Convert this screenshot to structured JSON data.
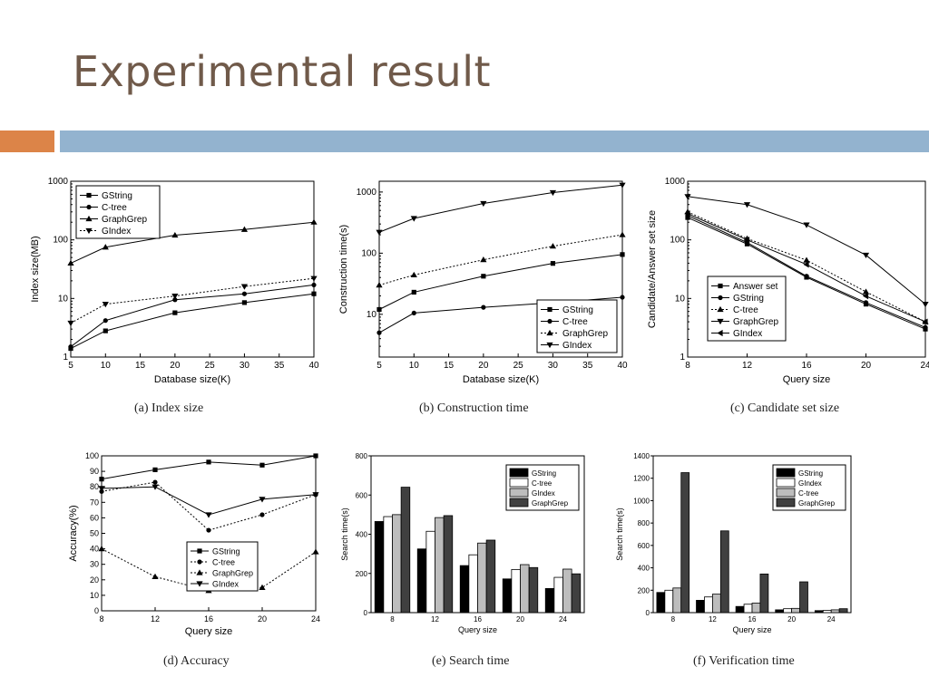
{
  "title": "Experimental result",
  "colors": {
    "title": "#705a4a",
    "accent_bar": "#dc8448",
    "main_bar": "#93b3cf"
  },
  "captions": {
    "a": "(a)  Index size",
    "b": "(b)  Construction time",
    "c": "(c)  Candidate set size",
    "d": "(d)  Accuracy",
    "e": "(e)  Search time",
    "f": "(f)  Verification time"
  },
  "chart_data": [
    {
      "id": "a",
      "type": "line",
      "yscale": "log",
      "xlabel": "Database size(K)",
      "ylabel": "Index size(MB)",
      "xlim": [
        5,
        40
      ],
      "ylim": [
        1,
        1000
      ],
      "xticks": [
        5,
        10,
        15,
        20,
        25,
        30,
        35,
        40
      ],
      "yticks": [
        1,
        10,
        100,
        1000
      ],
      "legend_position": "top-left",
      "series": [
        {
          "name": "GString",
          "marker": "square",
          "dash": "solid",
          "x": [
            5,
            10,
            20,
            30,
            40
          ],
          "y": [
            1.4,
            2.8,
            5.7,
            8.5,
            12
          ]
        },
        {
          "name": "C-tree",
          "marker": "circle",
          "dash": "solid",
          "x": [
            5,
            10,
            20,
            30,
            40
          ],
          "y": [
            1.5,
            4.2,
            9.5,
            12,
            17
          ]
        },
        {
          "name": "GraphGrep",
          "marker": "triangle-up",
          "dash": "solid",
          "x": [
            5,
            10,
            20,
            30,
            40
          ],
          "y": [
            40,
            75,
            120,
            150,
            200
          ]
        },
        {
          "name": "GIndex",
          "marker": "triangle-down",
          "dash": "dotted",
          "x": [
            5,
            10,
            20,
            30,
            40
          ],
          "y": [
            3.8,
            8,
            11,
            16,
            22
          ]
        }
      ]
    },
    {
      "id": "b",
      "type": "line",
      "yscale": "log",
      "xlabel": "Database size(K)",
      "ylabel": "Construction time(s)",
      "xlim": [
        5,
        40
      ],
      "ylim": [
        2,
        1500
      ],
      "xticks": [
        5,
        10,
        15,
        20,
        25,
        30,
        35,
        40
      ],
      "yticks": [
        10,
        100,
        1000
      ],
      "legend_position": "bottom-right",
      "series": [
        {
          "name": "GString",
          "marker": "square",
          "dash": "solid",
          "x": [
            5,
            10,
            20,
            30,
            40
          ],
          "y": [
            12,
            23,
            42,
            68,
            95
          ]
        },
        {
          "name": "C-tree",
          "marker": "circle",
          "dash": "solid",
          "x": [
            5,
            10,
            20,
            30,
            40
          ],
          "y": [
            5,
            10.5,
            13,
            15.5,
            19
          ]
        },
        {
          "name": "GraphGrep",
          "marker": "triangle-up",
          "dash": "dotted",
          "x": [
            5,
            10,
            20,
            30,
            40
          ],
          "y": [
            30,
            44,
            78,
            130,
            200
          ]
        },
        {
          "name": "GIndex",
          "marker": "triangle-down",
          "dash": "solid",
          "x": [
            5,
            10,
            20,
            30,
            40
          ],
          "y": [
            220,
            370,
            650,
            980,
            1300
          ]
        }
      ]
    },
    {
      "id": "c",
      "type": "line",
      "yscale": "log",
      "xlabel": "Query size",
      "ylabel": "Candidate/Answer set size",
      "xlim": [
        8,
        24
      ],
      "ylim": [
        1,
        1000
      ],
      "xticks": [
        8,
        12,
        16,
        20,
        24
      ],
      "yticks": [
        1,
        10,
        100,
        1000
      ],
      "legend_position": "bottom-left",
      "series": [
        {
          "name": "Answer set",
          "marker": "square",
          "dash": "solid",
          "x": [
            8,
            12,
            16,
            20,
            24
          ],
          "y": [
            240,
            85,
            23,
            8,
            3
          ]
        },
        {
          "name": "GString",
          "marker": "circle",
          "dash": "solid",
          "x": [
            8,
            12,
            16,
            20,
            24
          ],
          "y": [
            260,
            90,
            24,
            8.5,
            3.2
          ]
        },
        {
          "name": "C-tree",
          "marker": "triangle-up",
          "dash": "dotted",
          "x": [
            8,
            12,
            16,
            20,
            24
          ],
          "y": [
            300,
            105,
            45,
            13,
            4
          ]
        },
        {
          "name": "GraphGrep",
          "marker": "triangle-down",
          "dash": "solid",
          "x": [
            8,
            12,
            16,
            20,
            24
          ],
          "y": [
            550,
            400,
            180,
            55,
            8
          ]
        },
        {
          "name": "GIndex",
          "marker": "triangle-left",
          "dash": "solid",
          "x": [
            8,
            12,
            16,
            20,
            24
          ],
          "y": [
            280,
            100,
            38,
            11,
            4
          ]
        }
      ]
    },
    {
      "id": "d",
      "type": "line",
      "yscale": "linear",
      "xlabel": "Query size",
      "ylabel": "Accuracy(%)",
      "xlim": [
        8,
        24
      ],
      "ylim": [
        0,
        100
      ],
      "xticks": [
        8,
        12,
        16,
        20,
        24
      ],
      "yticks": [
        0,
        10,
        20,
        30,
        40,
        50,
        60,
        70,
        80,
        90,
        100
      ],
      "legend_position": "bottom-center",
      "series": [
        {
          "name": "GString",
          "marker": "square",
          "dash": "solid",
          "x": [
            8,
            12,
            16,
            20,
            24
          ],
          "y": [
            85,
            91,
            96,
            94,
            100
          ]
        },
        {
          "name": "C-tree",
          "marker": "circle",
          "dash": "dotted",
          "x": [
            8,
            12,
            16,
            20,
            24
          ],
          "y": [
            77,
            83,
            52,
            62,
            75
          ]
        },
        {
          "name": "GraphGrep",
          "marker": "triangle-up",
          "dash": "dotted",
          "x": [
            8,
            12,
            16,
            20,
            24
          ],
          "y": [
            40,
            22,
            13,
            15,
            38
          ]
        },
        {
          "name": "GIndex",
          "marker": "triangle-down",
          "dash": "solid",
          "x": [
            8,
            12,
            16,
            20,
            24
          ],
          "y": [
            79,
            80,
            62,
            72,
            75
          ]
        }
      ]
    },
    {
      "id": "e",
      "type": "bar",
      "xlabel": "Query size",
      "ylabel": "Search time(s)",
      "categories": [
        "8",
        "12",
        "16",
        "20",
        "24"
      ],
      "ylim": [
        0,
        800
      ],
      "yticks": [
        0,
        200,
        400,
        600,
        800
      ],
      "legend_position": "top-right",
      "series": [
        {
          "name": "GString",
          "fill": "#000000",
          "values": [
            465,
            325,
            240,
            172,
            123
          ]
        },
        {
          "name": "C-tree",
          "fill": "#ffffff",
          "values": [
            490,
            415,
            295,
            220,
            180
          ]
        },
        {
          "name": "GIndex",
          "fill": "#bdbdbd",
          "values": [
            500,
            485,
            355,
            245,
            222
          ]
        },
        {
          "name": "GraphGrep",
          "fill": "#404040",
          "values": [
            640,
            495,
            370,
            230,
            198
          ]
        }
      ]
    },
    {
      "id": "f",
      "type": "bar",
      "xlabel": "Query size",
      "ylabel": "Search time(s)",
      "categories": [
        "8",
        "12",
        "16",
        "20",
        "24"
      ],
      "ylim": [
        0,
        1400
      ],
      "yticks": [
        0,
        200,
        400,
        600,
        800,
        1000,
        1200,
        1400
      ],
      "legend_position": "top-right",
      "series": [
        {
          "name": "GString",
          "fill": "#000000",
          "values": [
            180,
            110,
            55,
            25,
            18
          ]
        },
        {
          "name": "GIndex",
          "fill": "#ffffff",
          "values": [
            200,
            140,
            75,
            35,
            20
          ]
        },
        {
          "name": "C-tree",
          "fill": "#bdbdbd",
          "values": [
            220,
            165,
            85,
            38,
            25
          ]
        },
        {
          "name": "GraphGrep",
          "fill": "#404040",
          "values": [
            1250,
            730,
            345,
            275,
            35
          ]
        }
      ]
    }
  ]
}
